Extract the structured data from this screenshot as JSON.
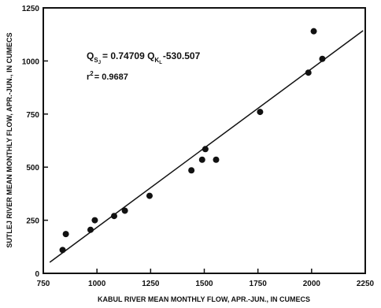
{
  "chart_data": {
    "type": "scatter",
    "xlabel": "KABUL RIVER MEAN MONTHLY FLOW, APR.-JUN., IN CUMECS",
    "ylabel": "SUTLEJ RIVER MEAN MONTHLY FLOW, APR.-JUN., IN CUMECS",
    "xlim": [
      750,
      2250
    ],
    "ylim": [
      0,
      1250
    ],
    "x_ticks": [
      "750",
      "1000",
      "1250",
      "1500",
      "1750",
      "2000",
      "2250"
    ],
    "y_ticks": [
      "0",
      "250",
      "500",
      "750",
      "1000",
      "1250"
    ],
    "points": [
      {
        "x": 840,
        "y": 110
      },
      {
        "x": 855,
        "y": 185
      },
      {
        "x": 970,
        "y": 205
      },
      {
        "x": 990,
        "y": 250
      },
      {
        "x": 1080,
        "y": 270
      },
      {
        "x": 1130,
        "y": 295
      },
      {
        "x": 1245,
        "y": 365
      },
      {
        "x": 1440,
        "y": 485
      },
      {
        "x": 1490,
        "y": 535
      },
      {
        "x": 1505,
        "y": 585
      },
      {
        "x": 1555,
        "y": 535
      },
      {
        "x": 1760,
        "y": 760
      },
      {
        "x": 1985,
        "y": 945
      },
      {
        "x": 2010,
        "y": 1140
      },
      {
        "x": 2050,
        "y": 1010
      }
    ],
    "regression_line": {
      "x": [
        780,
        2240
      ],
      "y": [
        52,
        1143
      ]
    },
    "grid": false,
    "legend": "none"
  },
  "equation": {
    "lhs": "Q",
    "lhs_sub": "S",
    "lhs_sub2": "J",
    "rhs_a": "= 0.74709 Q",
    "rhs_sub": "K",
    "rhs_sub2": "L",
    "rhs_b": "-530.507"
  },
  "r_squared": {
    "base": "r",
    "exp": "2",
    "rest": "= 0.9687"
  }
}
